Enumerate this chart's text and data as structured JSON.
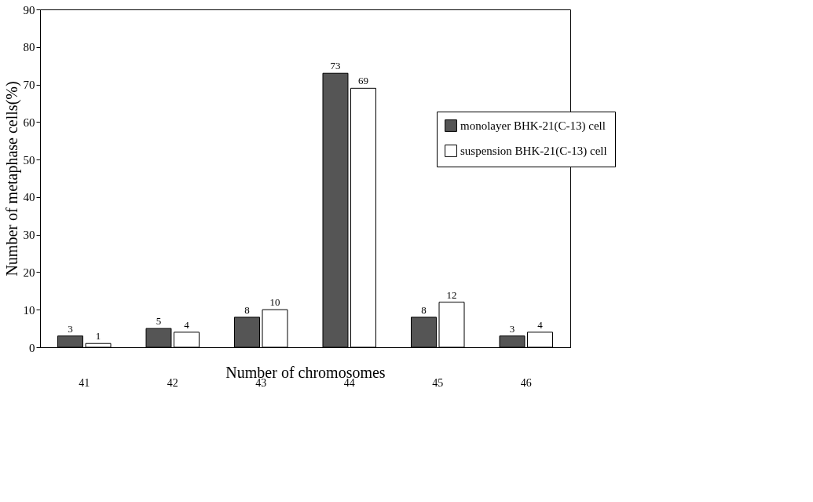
{
  "chart_data": {
    "type": "bar",
    "xlabel": "Number of chromosomes",
    "ylabel": "Number of metaphase cells(%)",
    "categories": [
      "41",
      "42",
      "43",
      "44",
      "45",
      "46"
    ],
    "series": [
      {
        "name": "monolayer BHK-21(C-13) cell",
        "color": "#555555",
        "values": [
          3,
          5,
          8,
          73,
          8,
          3
        ]
      },
      {
        "name": "suspension BHK-21(C-13) cell",
        "color": "#ffffff",
        "values": [
          1,
          4,
          10,
          69,
          12,
          4
        ]
      }
    ],
    "ylim": [
      0,
      90
    ],
    "yticks": [
      0,
      10,
      20,
      30,
      40,
      50,
      60,
      70,
      80,
      90
    ],
    "grid": false,
    "legend": "right",
    "data_labels": true
  }
}
